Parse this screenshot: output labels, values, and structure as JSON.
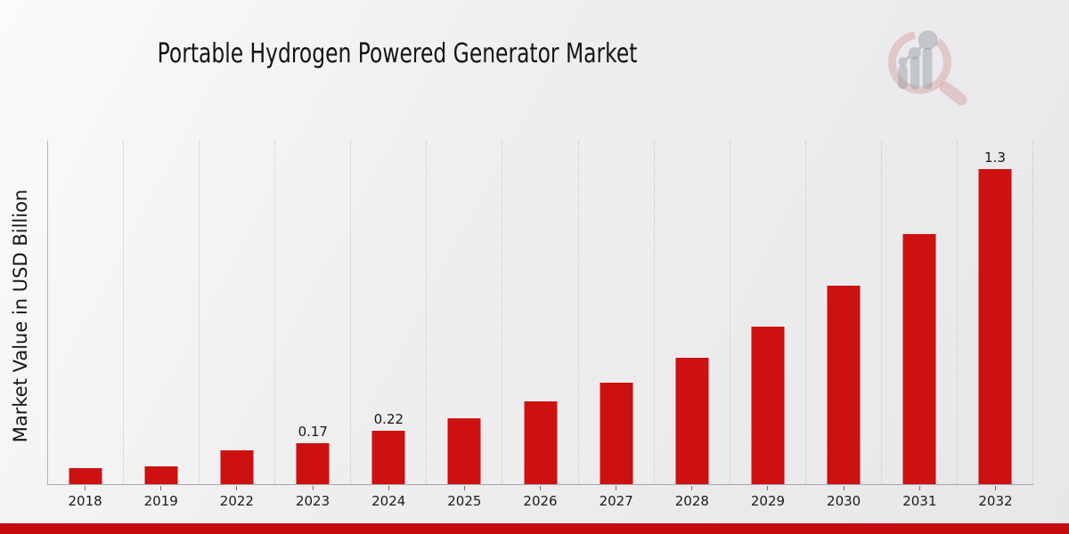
{
  "title": "Portable Hydrogen Powered Generator Market",
  "y_axis_label": "Market Value in USD Billion",
  "chart_data": {
    "type": "bar",
    "categories": [
      "2018",
      "2019",
      "2022",
      "2023",
      "2024",
      "2025",
      "2026",
      "2027",
      "2028",
      "2029",
      "2030",
      "2031",
      "2032"
    ],
    "values": [
      0.065,
      0.075,
      0.14,
      0.17,
      0.22,
      0.27,
      0.34,
      0.42,
      0.52,
      0.65,
      0.82,
      1.03,
      1.3
    ],
    "value_labels": [
      "",
      "",
      "",
      "0.17",
      "0.22",
      "",
      "",
      "",
      "",
      "",
      "",
      "",
      "1.3"
    ],
    "title": "Portable Hydrogen Powered Generator Market",
    "xlabel": "",
    "ylabel": "Market Value in USD Billion",
    "ylim": [
      0,
      1.42
    ],
    "grid": "vertical-dotted",
    "legend": "none",
    "bar_color": "#CD1010"
  },
  "branding": {
    "logo_icon": "magnifier-bar-chart-logo",
    "footer_bar_color": "#C40C0C",
    "logo_ring_color": "#cf9393",
    "logo_chart_color": "#9aa0a8"
  }
}
